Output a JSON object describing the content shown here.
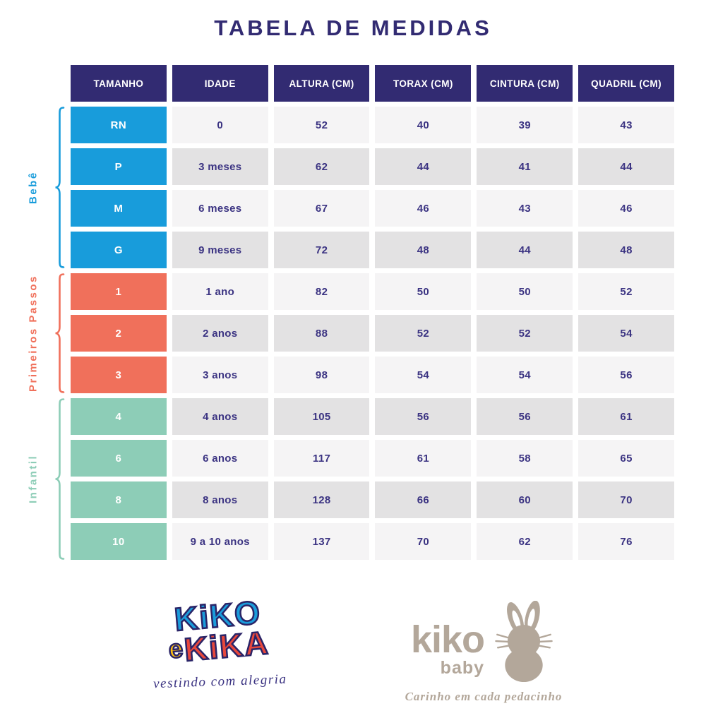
{
  "title": "TABELA DE MEDIDAS",
  "table": {
    "headers": [
      "TAMANHO",
      "IDADE",
      "ALTURA (CM)",
      "TORAX (CM)",
      "CINTURA (CM)",
      "QUADRIL (CM)"
    ],
    "groups": [
      {
        "label": "Bebê",
        "color": "#189CDB",
        "rows": [
          [
            "RN",
            "0",
            "52",
            "40",
            "39",
            "43"
          ],
          [
            "P",
            "3 meses",
            "62",
            "44",
            "41",
            "44"
          ],
          [
            "M",
            "6 meses",
            "67",
            "46",
            "43",
            "46"
          ],
          [
            "G",
            "9 meses",
            "72",
            "48",
            "44",
            "48"
          ]
        ]
      },
      {
        "label": "Primeiros Passos",
        "color": "#F0705B",
        "rows": [
          [
            "1",
            "1 ano",
            "82",
            "50",
            "50",
            "52"
          ],
          [
            "2",
            "2 anos",
            "88",
            "52",
            "52",
            "54"
          ],
          [
            "3",
            "3 anos",
            "98",
            "54",
            "54",
            "56"
          ]
        ]
      },
      {
        "label": "Infantil",
        "color": "#8DCDB7",
        "rows": [
          [
            "4",
            "4 anos",
            "105",
            "56",
            "56",
            "61"
          ],
          [
            "6",
            "6 anos",
            "117",
            "61",
            "58",
            "65"
          ],
          [
            "8",
            "8 anos",
            "128",
            "66",
            "60",
            "70"
          ],
          [
            "10",
            "9 a 10 anos",
            "137",
            "70",
            "62",
            "76"
          ]
        ]
      }
    ]
  },
  "colors": {
    "header_bg": "#322B72",
    "text_navy": "#3B3382",
    "row_light": "#F5F4F5",
    "row_dark": "#E3E2E3",
    "bebe_blue": "#189CDB",
    "passos_coral": "#F0705B",
    "infantil_mint": "#8DCDB7",
    "logo_blue": "#1B9CDB",
    "logo_yellow": "#FFC10E",
    "logo_red": "#E8483C",
    "logo_taupe": "#B3A79A"
  },
  "footer": {
    "kiko_e_kika": {
      "word1": "KiKO",
      "word2_e": "e",
      "word2": "KiKA",
      "tagline": "vestindo com alegria"
    },
    "kiko_baby": {
      "word1": "kiko",
      "word2": "baby",
      "tagline": "Carinho em cada pedacinho",
      "icon": "bunny-icon"
    }
  },
  "chart_data": {
    "type": "table",
    "title": "TABELA DE MEDIDAS",
    "columns": [
      "TAMANHO",
      "IDADE",
      "ALTURA (CM)",
      "TORAX (CM)",
      "CINTURA (CM)",
      "QUADRIL (CM)"
    ],
    "row_groups": [
      {
        "group": "Bebê",
        "rows": [
          [
            "RN",
            "0",
            52,
            40,
            39,
            43
          ],
          [
            "P",
            "3 meses",
            62,
            44,
            41,
            44
          ],
          [
            "M",
            "6 meses",
            67,
            46,
            43,
            46
          ],
          [
            "G",
            "9 meses",
            72,
            48,
            44,
            48
          ]
        ]
      },
      {
        "group": "Primeiros Passos",
        "rows": [
          [
            "1",
            "1 ano",
            82,
            50,
            50,
            52
          ],
          [
            "2",
            "2 anos",
            88,
            52,
            52,
            54
          ],
          [
            "3",
            "3 anos",
            98,
            54,
            54,
            56
          ]
        ]
      },
      {
        "group": "Infantil",
        "rows": [
          [
            "4",
            "4 anos",
            105,
            56,
            56,
            61
          ],
          [
            "6",
            "6 anos",
            117,
            61,
            58,
            65
          ],
          [
            "8",
            "8 anos",
            128,
            66,
            60,
            70
          ],
          [
            "10",
            "9 a 10 anos",
            137,
            70,
            62,
            76
          ]
        ]
      }
    ]
  }
}
